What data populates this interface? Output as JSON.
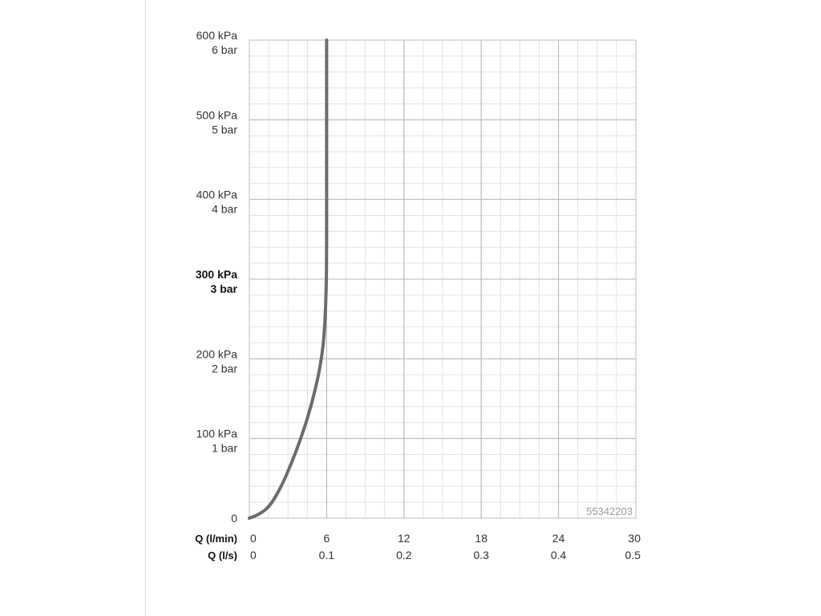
{
  "chart_data": {
    "type": "line",
    "y_ticks": [
      {
        "value": 0,
        "primary": "0",
        "secondary": "",
        "bold": false
      },
      {
        "value": 100,
        "primary": "100 kPa",
        "secondary": "1 bar",
        "bold": false
      },
      {
        "value": 200,
        "primary": "200 kPa",
        "secondary": "2 bar",
        "bold": false
      },
      {
        "value": 300,
        "primary": "300 kPa",
        "secondary": "3 bar",
        "bold": true
      },
      {
        "value": 400,
        "primary": "400 kPa",
        "secondary": "4 bar",
        "bold": false
      },
      {
        "value": 500,
        "primary": "500 kPa",
        "secondary": "5 bar",
        "bold": false
      },
      {
        "value": 600,
        "primary": "600 kPa",
        "secondary": "6 bar",
        "bold": false
      }
    ],
    "x_axis_labels": [
      "Q (l/min)",
      "Q (l/s)"
    ],
    "x_ticks": [
      {
        "value": 0,
        "primary": "0",
        "secondary": "0"
      },
      {
        "value": 6,
        "primary": "6",
        "secondary": "0.1"
      },
      {
        "value": 12,
        "primary": "12",
        "secondary": "0.2"
      },
      {
        "value": 18,
        "primary": "18",
        "secondary": "0.3"
      },
      {
        "value": 24,
        "primary": "24",
        "secondary": "0.4"
      },
      {
        "value": 30,
        "primary": "30",
        "secondary": "0.5"
      }
    ],
    "xlim": [
      0,
      30
    ],
    "ylim": [
      0,
      600
    ],
    "grid": {
      "major": true,
      "minor": true
    },
    "series": [
      {
        "color": "#6b6b6b",
        "x": [
          0,
          0.8,
          1.6,
          2.5,
          3.3,
          4.0,
          4.6,
          5.1,
          5.5,
          5.8,
          5.95,
          6.0,
          6.0,
          6.0
        ],
        "y": [
          0,
          5,
          15,
          40,
          70,
          100,
          130,
          160,
          190,
          225,
          275,
          320,
          450,
          600
        ]
      }
    ],
    "annotation": "55342203"
  }
}
